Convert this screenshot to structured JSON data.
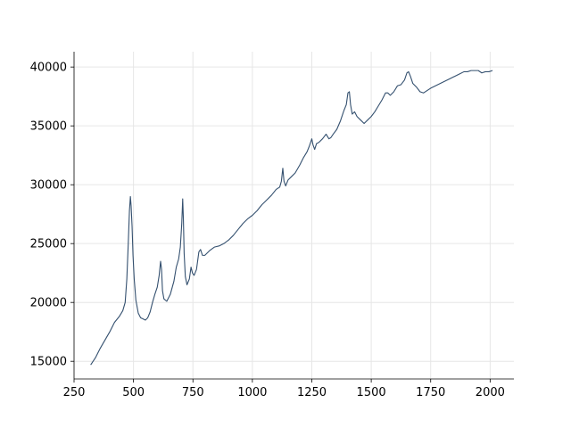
{
  "chart_data": {
    "type": "line",
    "title": "",
    "xlabel": "",
    "ylabel": "",
    "xlim": [
      250,
      2100
    ],
    "ylim": [
      13500,
      41300
    ],
    "x_ticks": [
      250,
      500,
      750,
      1000,
      1250,
      1500,
      1750,
      2000
    ],
    "y_ticks": [
      15000,
      20000,
      25000,
      30000,
      35000,
      40000
    ],
    "grid": true,
    "legend": "none",
    "line_color": "#34506f",
    "series": [
      {
        "x": [
          320,
          340,
          360,
          380,
          400,
          420,
          440,
          455,
          465,
          472,
          478,
          483,
          487,
          490,
          494,
          498,
          503,
          510,
          520,
          530,
          540,
          550,
          560,
          570,
          580,
          590,
          600,
          608,
          614,
          618,
          622,
          628,
          640,
          655,
          670,
          680,
          690,
          697,
          703,
          707,
          710,
          713,
          718,
          725,
          735,
          742,
          748,
          755,
          765,
          775,
          782,
          790,
          800,
          820,
          840,
          860,
          880,
          900,
          920,
          940,
          960,
          980,
          1000,
          1020,
          1040,
          1060,
          1080,
          1100,
          1115,
          1122,
          1128,
          1133,
          1140,
          1150,
          1165,
          1180,
          1200,
          1215,
          1230,
          1240,
          1250,
          1255,
          1262,
          1270,
          1280,
          1295,
          1310,
          1322,
          1330,
          1340,
          1355,
          1370,
          1385,
          1395,
          1402,
          1408,
          1413,
          1420,
          1430,
          1440,
          1455,
          1470,
          1485,
          1500,
          1515,
          1530,
          1545,
          1560,
          1570,
          1580,
          1595,
          1610,
          1625,
          1640,
          1650,
          1657,
          1665,
          1675,
          1690,
          1705,
          1720,
          1735,
          1750,
          1770,
          1790,
          1810,
          1830,
          1850,
          1870,
          1890,
          1905,
          1920,
          1935,
          1950,
          1965,
          1980,
          1995,
          2010
        ],
        "y": [
          14700,
          15300,
          16100,
          16800,
          17500,
          18300,
          18800,
          19300,
          20000,
          22000,
          25000,
          27800,
          29000,
          28200,
          26500,
          24000,
          22000,
          20200,
          19100,
          18700,
          18600,
          18500,
          18700,
          19200,
          20000,
          20700,
          21300,
          22300,
          23500,
          22800,
          21000,
          20300,
          20100,
          20700,
          21800,
          23000,
          23700,
          24700,
          26700,
          28800,
          27000,
          24200,
          22200,
          21500,
          22000,
          23000,
          22500,
          22300,
          22800,
          24300,
          24500,
          24000,
          24000,
          24400,
          24700,
          24800,
          25000,
          25300,
          25700,
          26200,
          26700,
          27100,
          27400,
          27800,
          28300,
          28700,
          29100,
          29600,
          29800,
          30300,
          31400,
          30300,
          29900,
          30400,
          30700,
          31000,
          31700,
          32300,
          32800,
          33300,
          33900,
          33400,
          33000,
          33500,
          33600,
          33900,
          34300,
          33900,
          34000,
          34300,
          34700,
          35400,
          36300,
          36800,
          37800,
          37900,
          36800,
          36000,
          36200,
          35800,
          35500,
          35200,
          35500,
          35800,
          36200,
          36700,
          37200,
          37800,
          37800,
          37600,
          37900,
          38400,
          38500,
          38900,
          39500,
          39600,
          39200,
          38600,
          38300,
          37900,
          37800,
          38000,
          38200,
          38400,
          38600,
          38800,
          39000,
          39200,
          39400,
          39600,
          39600,
          39700,
          39700,
          39700,
          39500,
          39600,
          39600,
          39700
        ]
      }
    ]
  }
}
